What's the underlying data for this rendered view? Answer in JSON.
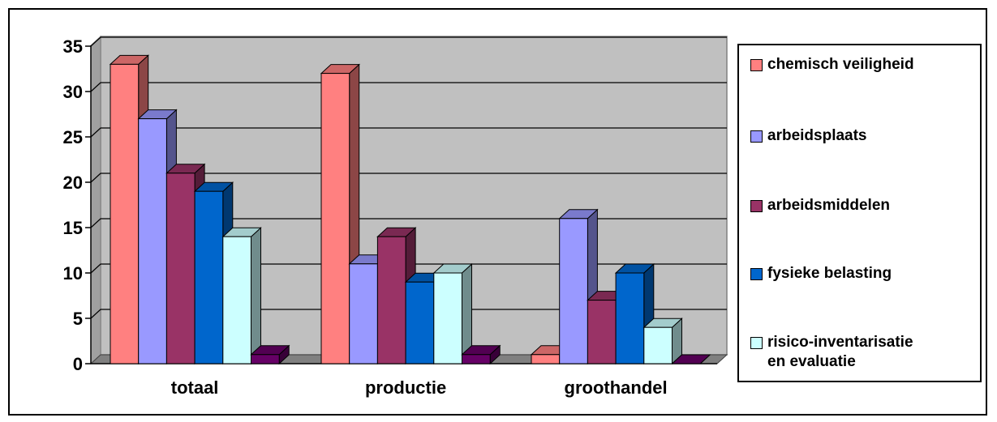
{
  "chart_data": {
    "type": "bar",
    "categories": [
      "totaal",
      "productie",
      "groothandel"
    ],
    "series": [
      {
        "name": "chemisch veiligheid",
        "color": "#FF8080",
        "values": [
          33,
          32,
          1
        ]
      },
      {
        "name": "arbeidsplaats",
        "color": "#9999FF",
        "values": [
          27,
          11,
          16
        ]
      },
      {
        "name": "arbeidsmiddelen",
        "color": "#993366",
        "values": [
          21,
          14,
          7
        ]
      },
      {
        "name": "fysieke belasting",
        "color": "#0066CC",
        "values": [
          19,
          9,
          10
        ]
      },
      {
        "name": "risico-inventarisatie\nen evaluatie",
        "color": "#CCFFFF",
        "values": [
          14,
          10,
          4
        ]
      },
      {
        "name": "",
        "color": "#660066",
        "values": [
          1,
          1,
          0
        ]
      }
    ],
    "y_ticks": [
      "0",
      "5",
      "10",
      "15",
      "20",
      "25",
      "30",
      "35"
    ],
    "ylim": [
      0,
      35
    ],
    "grid": true,
    "plot_background": "#C0C0C0",
    "legend_placement": "right",
    "title": "",
    "xlabel": "",
    "ylabel": ""
  }
}
